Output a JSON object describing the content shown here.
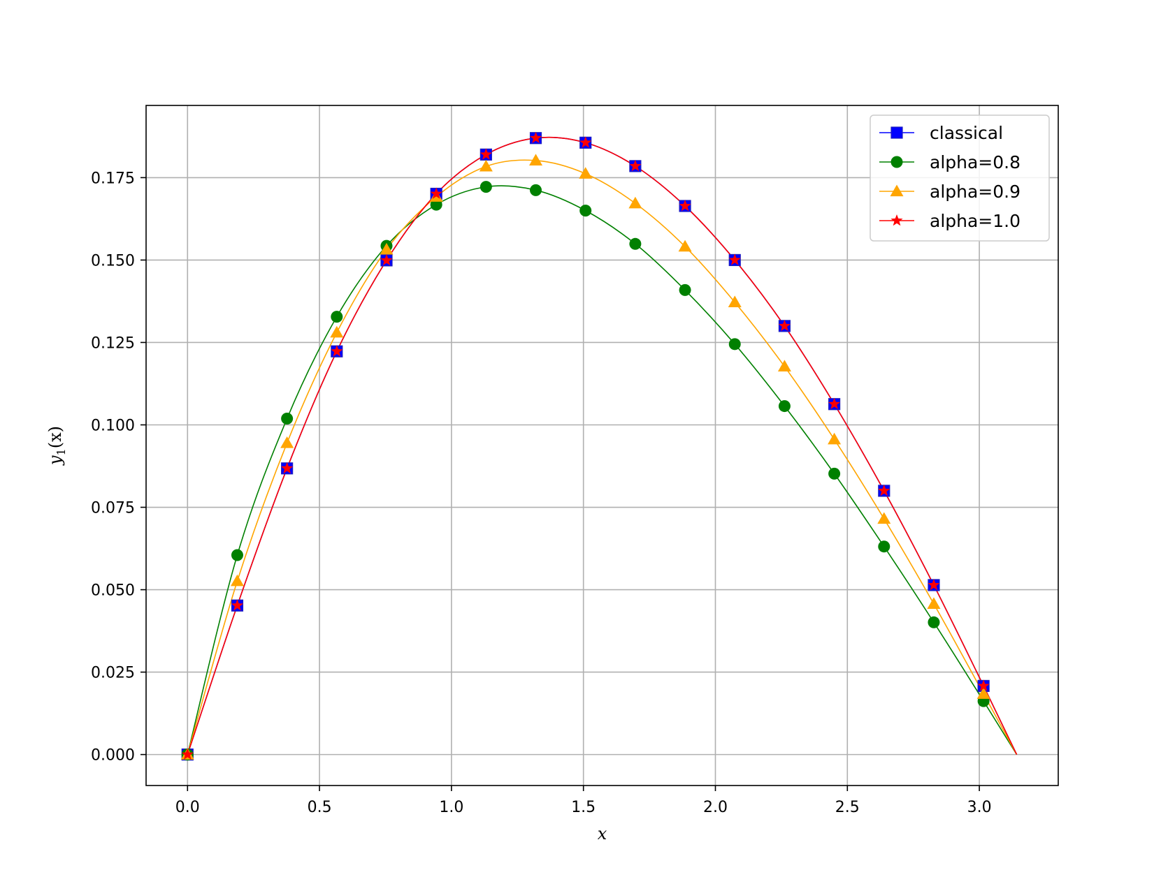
{
  "chart_data": {
    "type": "line",
    "title": "",
    "xlabel": "x",
    "ylabel_main": "y",
    "ylabel_sub": "1",
    "ylabel_arg": "(x)",
    "xlim": [
      -0.157,
      3.299
    ],
    "ylim": [
      -0.0094,
      0.1969
    ],
    "xticks": [
      0.0,
      0.5,
      1.0,
      1.5,
      2.0,
      2.5,
      3.0
    ],
    "xtick_labels": [
      "0.0",
      "0.5",
      "1.0",
      "1.5",
      "2.0",
      "2.5",
      "3.0"
    ],
    "yticks": [
      0.0,
      0.025,
      0.05,
      0.075,
      0.1,
      0.125,
      0.15,
      0.175
    ],
    "ytick_labels": [
      "0.000",
      "0.025",
      "0.050",
      "0.075",
      "0.100",
      "0.125",
      "0.150",
      "0.175"
    ],
    "grid": true,
    "legend_position": "top-right",
    "marker_x": [
      0.0,
      0.1885,
      0.377,
      0.5655,
      0.754,
      0.9425,
      1.131,
      1.3195,
      1.508,
      1.6965,
      1.885,
      2.0735,
      2.262,
      2.4505,
      2.639,
      2.8275,
      3.016
    ],
    "x_end": 3.1416,
    "series": [
      {
        "name": "classical",
        "color": "#0000ff",
        "marker": "square",
        "values": [
          0.0,
          0.0452,
          0.0868,
          0.1223,
          0.1499,
          0.1701,
          0.182,
          0.187,
          0.1856,
          0.1785,
          0.1664,
          0.15,
          0.13,
          0.1063,
          0.08,
          0.0514,
          0.0208
        ],
        "end_value": 0.0
      },
      {
        "name": "alpha=0.8",
        "color": "#008000",
        "marker": "circle",
        "values": [
          0.0,
          0.0605,
          0.1019,
          0.1328,
          0.1543,
          0.1668,
          0.1722,
          0.1712,
          0.165,
          0.1549,
          0.1409,
          0.1245,
          0.1057,
          0.0852,
          0.0631,
          0.0401,
          0.0162
        ],
        "end_value": 0.0
      },
      {
        "name": "alpha=0.9",
        "color": "#ffa500",
        "marker": "triangle",
        "values": [
          0.0,
          0.0526,
          0.0945,
          0.128,
          0.1532,
          0.1692,
          0.1784,
          0.1802,
          0.1762,
          0.1672,
          0.1541,
          0.1372,
          0.1177,
          0.0956,
          0.0715,
          0.0457,
          0.0184
        ],
        "end_value": 0.0
      },
      {
        "name": "alpha=1.0",
        "color": "#ff0000",
        "marker": "star",
        "values": [
          0.0,
          0.0452,
          0.0868,
          0.1223,
          0.1499,
          0.1701,
          0.182,
          0.187,
          0.1856,
          0.1785,
          0.1664,
          0.15,
          0.13,
          0.1063,
          0.08,
          0.0514,
          0.0208
        ],
        "end_value": 0.0
      }
    ]
  }
}
